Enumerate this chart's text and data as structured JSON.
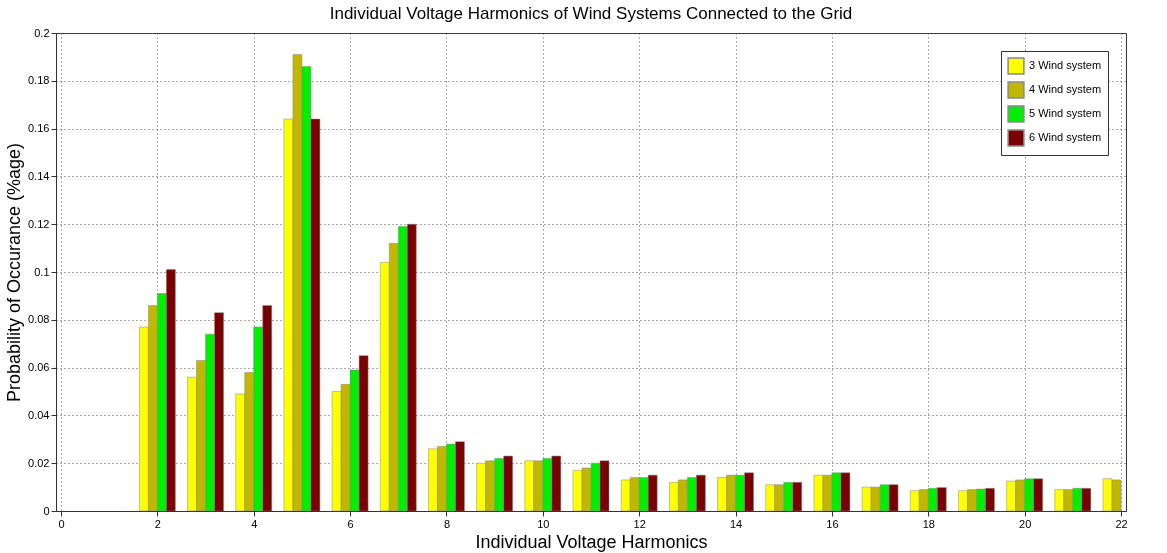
{
  "chart_data": {
    "type": "bar",
    "title": "Individual Voltage Harmonics of Wind Systems Connected to the Grid",
    "xlabel": "Individual Voltage Harmonics",
    "ylabel": "Probability of Occurance (%age)",
    "x": [
      2,
      3,
      4,
      5,
      6,
      7,
      8,
      9,
      10,
      11,
      12,
      13,
      14,
      15,
      16,
      17,
      18,
      19,
      20,
      21,
      22
    ],
    "series": [
      {
        "name": "3 Wind system",
        "color": "#ffff00",
        "values": [
          0.077,
          0.056,
          0.049,
          0.164,
          0.05,
          0.104,
          0.026,
          0.02,
          0.021,
          0.017,
          0.013,
          0.012,
          0.014,
          0.011,
          0.015,
          0.01,
          0.0085,
          0.0085,
          0.0125,
          0.009,
          0.0135
        ]
      },
      {
        "name": "4 Wind system",
        "color": "#c0b800",
        "values": [
          0.086,
          0.063,
          0.058,
          0.191,
          0.053,
          0.112,
          0.027,
          0.021,
          0.021,
          0.018,
          0.014,
          0.013,
          0.015,
          0.011,
          0.015,
          0.01,
          0.009,
          0.009,
          0.013,
          0.009,
          0.013
        ]
      },
      {
        "name": "5 Wind system",
        "color": "#00ee00",
        "values": [
          0.091,
          0.074,
          0.077,
          0.186,
          0.059,
          0.119,
          0.028,
          0.022,
          0.022,
          0.02,
          0.014,
          0.014,
          0.015,
          0.012,
          0.016,
          0.011,
          0.0095,
          0.0092,
          0.0135,
          0.0095,
          null
        ]
      },
      {
        "name": "6 Wind system",
        "color": "#7a0000",
        "values": [
          0.101,
          0.083,
          0.086,
          0.164,
          0.065,
          0.12,
          0.029,
          0.023,
          0.023,
          0.021,
          0.015,
          0.015,
          0.016,
          0.012,
          0.016,
          0.011,
          0.0098,
          0.0095,
          0.0135,
          0.0095,
          null
        ]
      }
    ],
    "xlim": [
      0,
      22
    ],
    "xticks": [
      0,
      2,
      4,
      6,
      8,
      10,
      12,
      14,
      16,
      18,
      20,
      22
    ],
    "ylim": [
      0,
      0.2
    ],
    "yticks": [
      0,
      0.02,
      0.04,
      0.06,
      0.08,
      0.1,
      0.12,
      0.14,
      0.16,
      0.18,
      0.2
    ],
    "grid": true,
    "legend": "top right"
  }
}
